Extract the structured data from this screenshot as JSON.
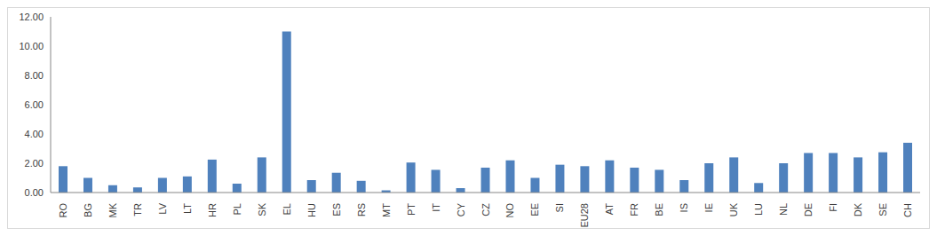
{
  "chart_data": {
    "type": "bar",
    "categories": [
      "RO",
      "BG",
      "MK",
      "TR",
      "LV",
      "LT",
      "HR",
      "PL",
      "SK",
      "EL",
      "HU",
      "ES",
      "RS",
      "MT",
      "PT",
      "IT",
      "CY",
      "CZ",
      "NO",
      "EE",
      "SI",
      "EU28",
      "AT",
      "FR",
      "BE",
      "IS",
      "IE",
      "UK",
      "LU",
      "NL",
      "DE",
      "FI",
      "DK",
      "SE",
      "CH"
    ],
    "values": [
      1.8,
      1.0,
      0.5,
      0.35,
      1.0,
      1.1,
      2.25,
      0.6,
      2.4,
      11.0,
      0.85,
      1.35,
      0.8,
      0.15,
      2.05,
      1.55,
      0.3,
      1.7,
      2.2,
      1.0,
      1.9,
      1.8,
      2.2,
      1.7,
      1.55,
      0.85,
      2.0,
      2.4,
      0.65,
      2.0,
      2.7,
      2.7,
      2.4,
      2.75,
      3.4
    ],
    "color": "#4f81bd",
    "ylim": [
      0,
      12
    ],
    "yticks": [
      {
        "value": 0,
        "label": "0.00"
      },
      {
        "value": 2,
        "label": "2.00"
      },
      {
        "value": 4,
        "label": "4.00"
      },
      {
        "value": 6,
        "label": "6.00"
      },
      {
        "value": 8,
        "label": "8.00"
      },
      {
        "value": 10,
        "label": "10.00"
      },
      {
        "value": 12,
        "label": "12.00"
      }
    ],
    "grid": false
  }
}
